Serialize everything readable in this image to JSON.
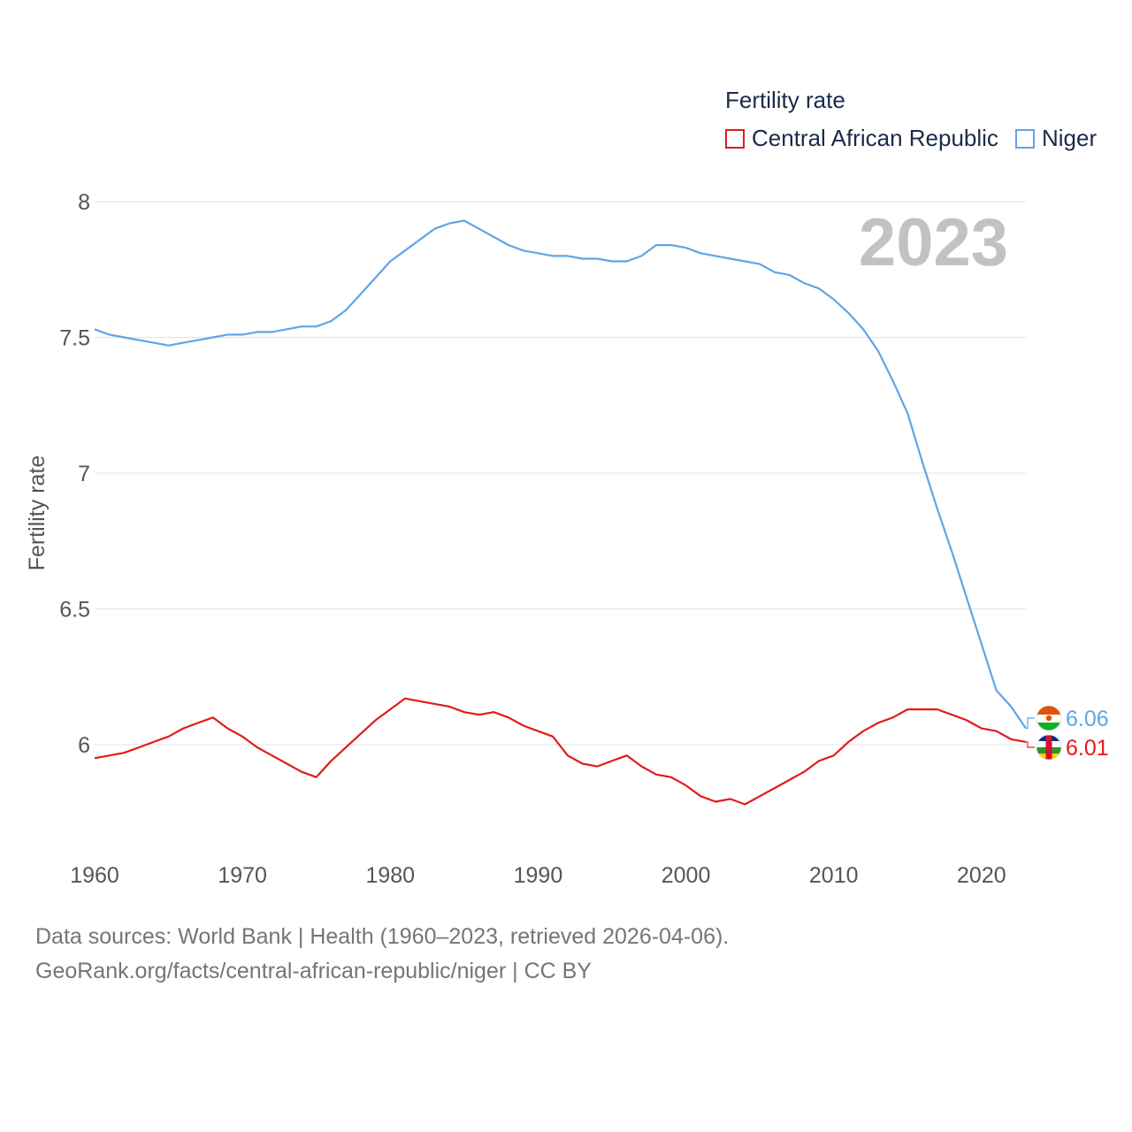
{
  "legend": {
    "title": "Fertility rate",
    "items": [
      {
        "label": "Central African Republic",
        "color": "#e31a1c"
      },
      {
        "label": "Niger",
        "color": "#5fa5e6"
      }
    ]
  },
  "year_overlay": "2023",
  "footer": {
    "line1": "Data sources: World Bank | Health (1960–2023, retrieved 2026-04-06).",
    "line2": "GeoRank.org/facts/central-african-republic/niger | CC BY"
  },
  "chart_data": {
    "type": "line",
    "title": "Fertility rate",
    "xlabel": "",
    "ylabel": "Fertility rate",
    "xlim": [
      1960,
      2023
    ],
    "ylim": [
      5.65,
      8.1
    ],
    "x_ticks": [
      1960,
      1970,
      1980,
      1990,
      2000,
      2010,
      2020
    ],
    "y_ticks": [
      6,
      6.5,
      7,
      7.5,
      8
    ],
    "y_tick_labels": [
      "6",
      "6.5",
      "7",
      "7.5",
      "8"
    ],
    "grid": true,
    "legend_position": "top-right",
    "x": [
      1960,
      1961,
      1962,
      1963,
      1964,
      1965,
      1966,
      1967,
      1968,
      1969,
      1970,
      1971,
      1972,
      1973,
      1974,
      1975,
      1976,
      1977,
      1978,
      1979,
      1980,
      1981,
      1982,
      1983,
      1984,
      1985,
      1986,
      1987,
      1988,
      1989,
      1990,
      1991,
      1992,
      1993,
      1994,
      1995,
      1996,
      1997,
      1998,
      1999,
      2000,
      2001,
      2002,
      2003,
      2004,
      2005,
      2006,
      2007,
      2008,
      2009,
      2010,
      2011,
      2012,
      2013,
      2014,
      2015,
      2016,
      2017,
      2018,
      2019,
      2020,
      2021,
      2022,
      2023
    ],
    "series": [
      {
        "name": "Central African Republic",
        "color": "#e31a1c",
        "end_label": "6.01",
        "flag": "central-african-republic-flag-icon",
        "values": [
          5.95,
          5.96,
          5.97,
          5.99,
          6.01,
          6.03,
          6.06,
          6.08,
          6.1,
          6.06,
          6.03,
          5.99,
          5.96,
          5.93,
          5.9,
          5.88,
          5.94,
          5.99,
          6.04,
          6.09,
          6.13,
          6.17,
          6.16,
          6.15,
          6.14,
          6.12,
          6.11,
          6.12,
          6.1,
          6.07,
          6.05,
          6.03,
          5.96,
          5.93,
          5.92,
          5.94,
          5.96,
          5.92,
          5.89,
          5.88,
          5.85,
          5.81,
          5.79,
          5.8,
          5.78,
          5.81,
          5.84,
          5.87,
          5.9,
          5.94,
          5.96,
          6.01,
          6.05,
          6.08,
          6.1,
          6.13,
          6.13,
          6.13,
          6.11,
          6.09,
          6.06,
          6.05,
          6.02,
          6.01
        ]
      },
      {
        "name": "Niger",
        "color": "#5fa5e6",
        "end_label": "6.06",
        "flag": "niger-flag-icon",
        "values": [
          7.53,
          7.51,
          7.5,
          7.49,
          7.48,
          7.47,
          7.48,
          7.49,
          7.5,
          7.51,
          7.51,
          7.52,
          7.52,
          7.53,
          7.54,
          7.54,
          7.56,
          7.6,
          7.66,
          7.72,
          7.78,
          7.82,
          7.86,
          7.9,
          7.92,
          7.93,
          7.9,
          7.87,
          7.84,
          7.82,
          7.81,
          7.8,
          7.8,
          7.79,
          7.79,
          7.78,
          7.78,
          7.8,
          7.84,
          7.84,
          7.83,
          7.81,
          7.8,
          7.79,
          7.78,
          7.77,
          7.74,
          7.73,
          7.7,
          7.68,
          7.64,
          7.59,
          7.53,
          7.45,
          7.34,
          7.22,
          7.04,
          6.87,
          6.71,
          6.54,
          6.37,
          6.2,
          6.14,
          6.06
        ]
      }
    ]
  }
}
